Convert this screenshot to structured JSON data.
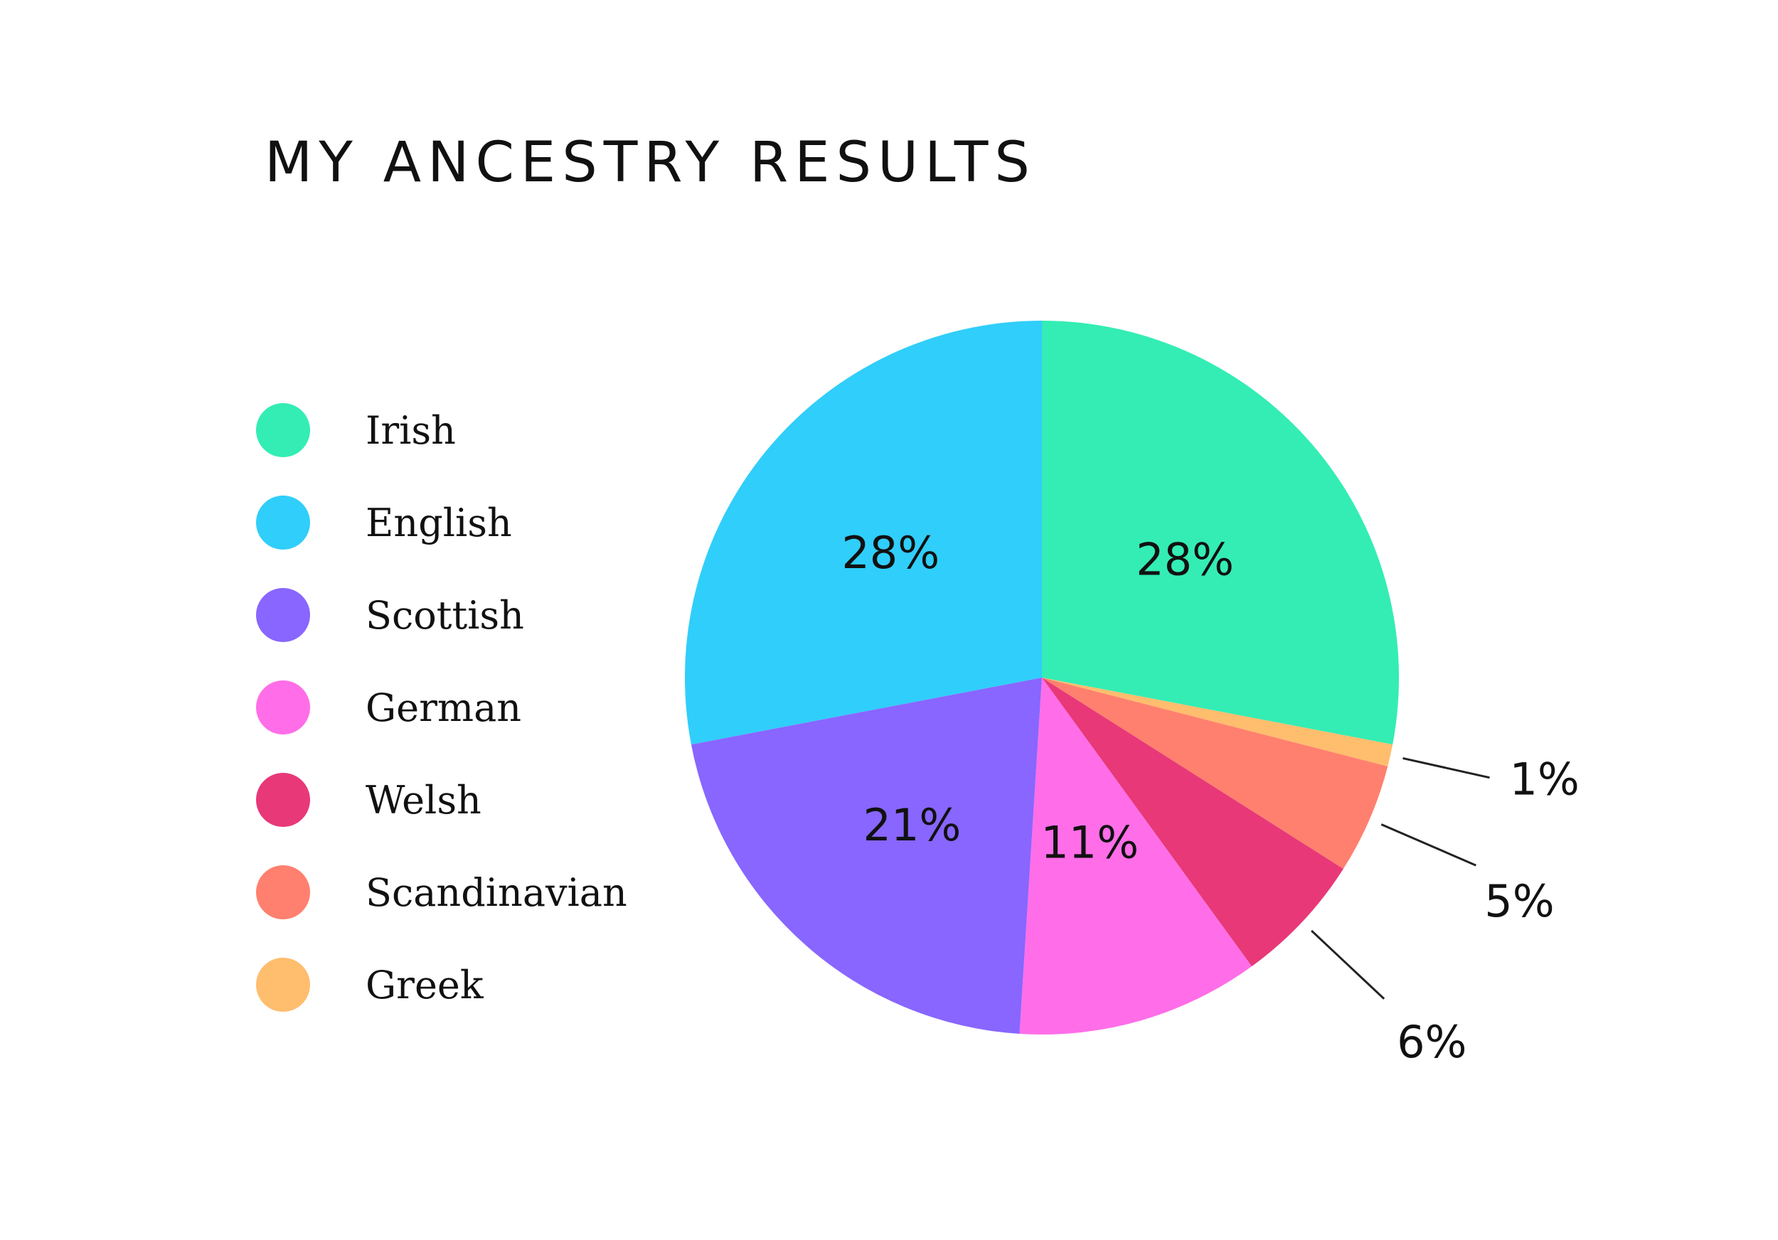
{
  "chart_data": {
    "type": "pie",
    "title": "MY ANCESTRY RESULTS",
    "legend_position": "left",
    "slices": [
      {
        "name": "Irish",
        "value": 28,
        "label": "28%",
        "color": "#33EDB4"
      },
      {
        "name": "Greek",
        "value": 1,
        "label": "1%",
        "color": "#FFBD6E"
      },
      {
        "name": "Scandinavian",
        "value": 5,
        "label": "5%",
        "color": "#FF806E"
      },
      {
        "name": "Welsh",
        "value": 6,
        "label": "6%",
        "color": "#E83878"
      },
      {
        "name": "German",
        "value": 11,
        "label": "11%",
        "color": "#FF6EE8"
      },
      {
        "name": "Scottish",
        "value": 21,
        "label": "21%",
        "color": "#8866FF"
      },
      {
        "name": "English",
        "value": 28,
        "label": "28%",
        "color": "#30CEFA"
      }
    ],
    "legend": [
      {
        "name": "Irish",
        "color": "#33EDB4"
      },
      {
        "name": "English",
        "color": "#30CEFA"
      },
      {
        "name": "Scottish",
        "color": "#8866FF"
      },
      {
        "name": "German",
        "color": "#FF6EE8"
      },
      {
        "name": "Welsh",
        "color": "#E83878"
      },
      {
        "name": "Scandinavian",
        "color": "#FF806E"
      },
      {
        "name": "Greek",
        "color": "#FFBD6E"
      }
    ]
  }
}
